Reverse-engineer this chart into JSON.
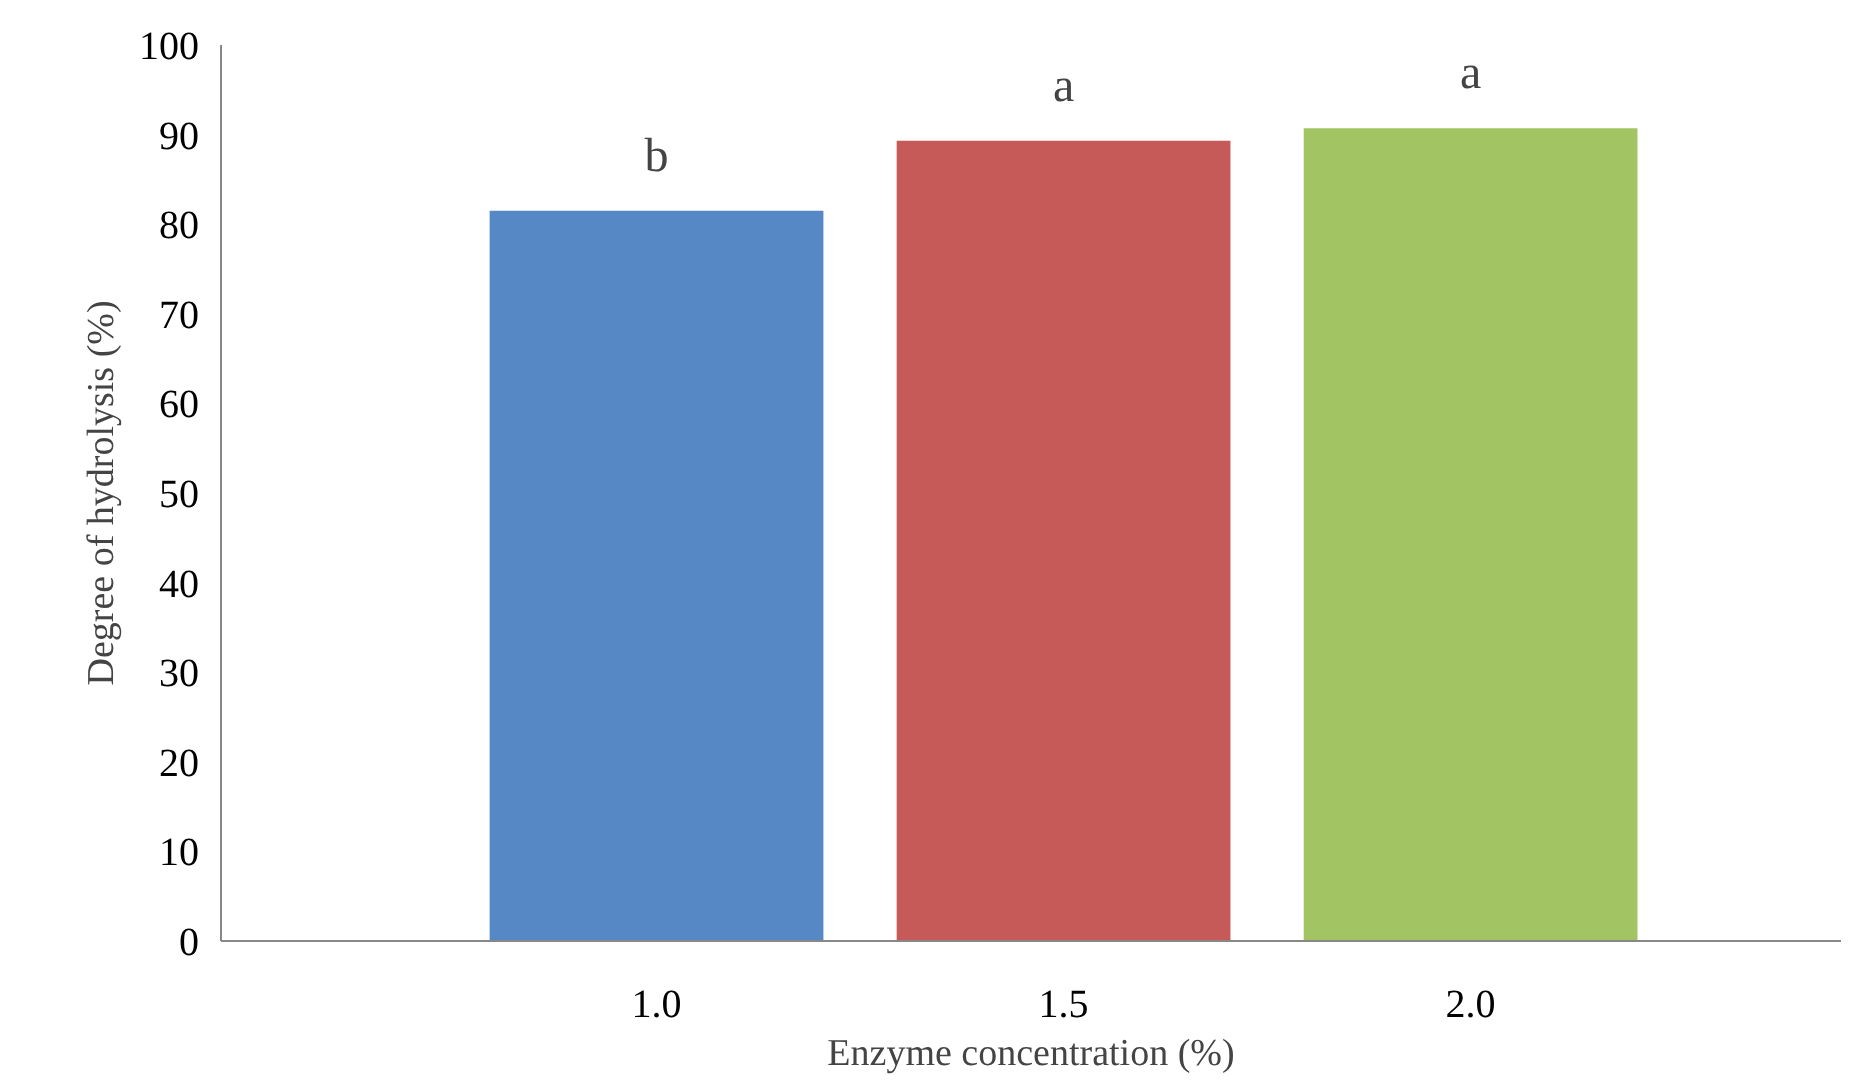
{
  "chart_data": {
    "type": "bar",
    "xlabel": "Enzyme concentration (%)",
    "ylabel": "Degree of hydrolysis (%)",
    "categories": [
      "1.0",
      "1.5",
      "2.0"
    ],
    "values": [
      81.5,
      89.3,
      90.7
    ],
    "colors": [
      "#5588c4",
      "#c55a58",
      "#a2c462"
    ],
    "ylim": [
      0,
      100
    ],
    "yticks": [
      0,
      10,
      20,
      30,
      40,
      50,
      60,
      70,
      80,
      90,
      100
    ],
    "grid": false,
    "annotations": [
      {
        "text": "b",
        "x": "1.0",
        "y": 81.5
      },
      {
        "text": "a",
        "x": "1.5",
        "y": 89.3
      },
      {
        "text": "a",
        "x": "2.0",
        "y": 90.7
      }
    ]
  }
}
